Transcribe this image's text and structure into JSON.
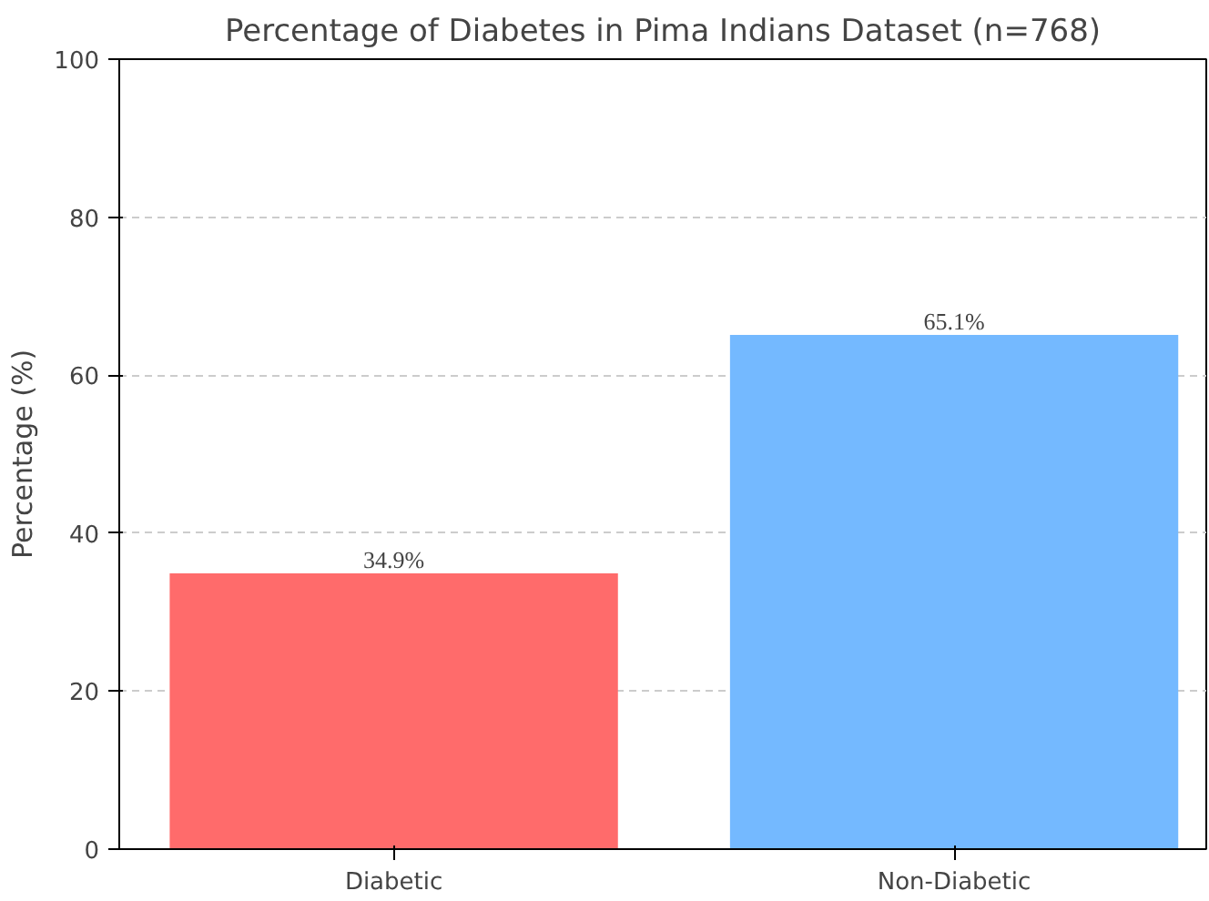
{
  "chart_data": {
    "type": "bar",
    "title": "Percentage of Diabetes in Pima Indians Dataset (n=768)",
    "ylabel": "Percentage (%)",
    "categories": [
      "Diabetic",
      "Non-Diabetic"
    ],
    "values": [
      34.9,
      65.1
    ],
    "colors": [
      "#ff6b6b",
      "#74b9ff"
    ],
    "value_labels": [
      "34.9%",
      "65.1%"
    ],
    "ylim": [
      0,
      100
    ],
    "yticks": [
      0,
      20,
      40,
      60,
      80,
      100
    ],
    "grid": "y"
  }
}
